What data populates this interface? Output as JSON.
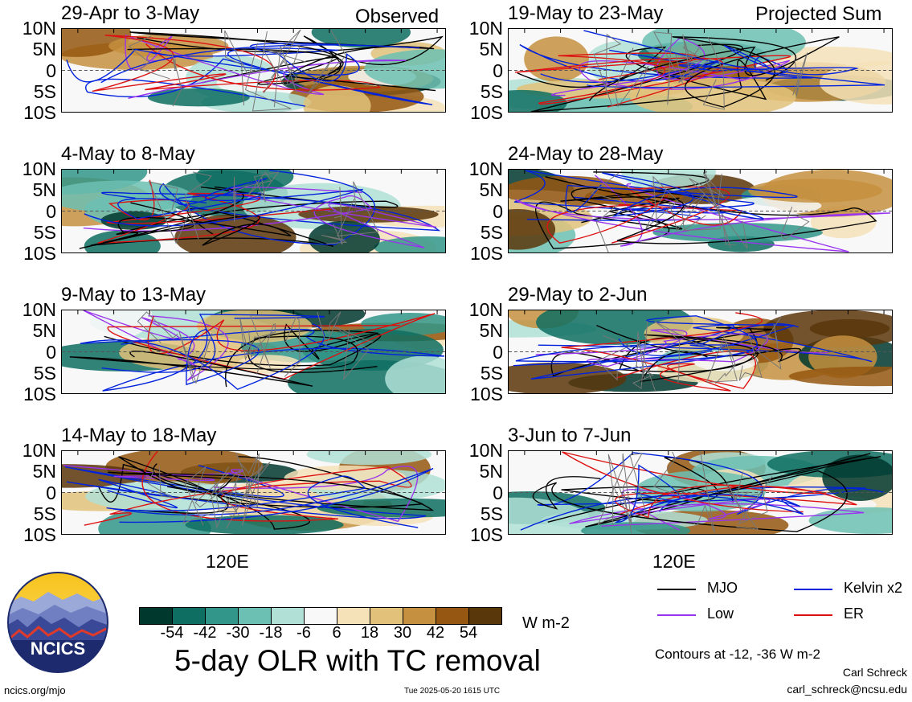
{
  "chart_data": {
    "type": "heatmap",
    "title": "5-day OLR with TC removal",
    "column_labels": [
      "Observed",
      "Projected Sum"
    ],
    "yticks": [
      "10N",
      "5N",
      "0",
      "5S",
      "10S"
    ],
    "xtick": "120E",
    "panels": [
      {
        "label": "29-Apr to 3-May",
        "column": "Observed"
      },
      {
        "label": "4-May to 8-May",
        "column": "Observed"
      },
      {
        "label": "9-May to 13-May",
        "column": "Observed"
      },
      {
        "label": "14-May to 18-May",
        "column": "Observed"
      },
      {
        "label": "19-May to 23-May",
        "column": "Projected Sum"
      },
      {
        "label": "24-May to 28-May",
        "column": "Projected Sum"
      },
      {
        "label": "29-May to 2-Jun",
        "column": "Projected Sum"
      },
      {
        "label": "3-Jun to 7-Jun",
        "column": "Projected Sum"
      }
    ],
    "colorbar": {
      "units": "W m-2",
      "labels": [
        "-54",
        "-42",
        "-30",
        "-18",
        "-6",
        "6",
        "18",
        "30",
        "42",
        "54"
      ],
      "colors": [
        "#00382e",
        "#0e6e61",
        "#33968a",
        "#6cbfb3",
        "#b0e0d6",
        "#f8f8f8",
        "#f5e2b8",
        "#e2c27a",
        "#c5903f",
        "#955711",
        "#5a360b"
      ]
    },
    "contour_note": "Contours at -12, -36 W m-2",
    "legend": [
      {
        "name": "MJO",
        "color": "#000000"
      },
      {
        "name": "Kelvin x2",
        "color": "#0022dd"
      },
      {
        "name": "Low",
        "color": "#9933ee"
      },
      {
        "name": "ER",
        "color": "#dd1111"
      }
    ]
  },
  "footer": {
    "site": "ncics.org/mjo",
    "timestamp": "Tue 2025-05-20 1615 UTC",
    "author": "Carl Schreck",
    "email": "carl_schreck@ncsu.edu",
    "logo_text": "NCICS"
  }
}
